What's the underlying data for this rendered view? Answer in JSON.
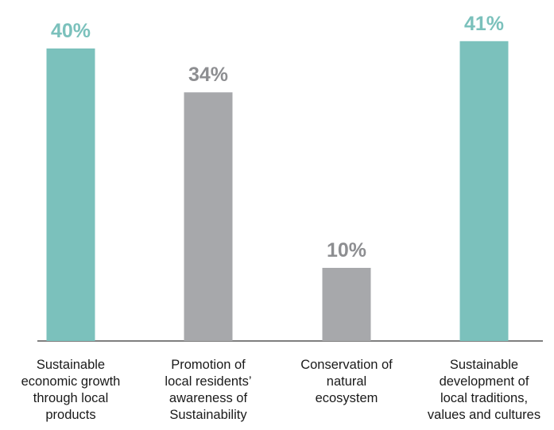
{
  "chart_data": {
    "type": "bar",
    "categories": [
      "Sustainable economic growth through local products",
      "Promotion of local residents’ awareness of Sustainability",
      "Conservation of natural ecosystem",
      "Sustainable development of local traditions, values and cultures"
    ],
    "category_lines": [
      [
        "Sustainable",
        "economic growth",
        "through local",
        "products"
      ],
      [
        "Promotion of",
        "local residents’",
        "awareness of",
        "Sustainability"
      ],
      [
        "Conservation of",
        "natural",
        "ecosystem"
      ],
      [
        "Sustainable",
        "development of",
        "local traditions,",
        "values and cultures"
      ]
    ],
    "values": [
      40,
      34,
      10,
      41
    ],
    "value_labels": [
      "40%",
      "34%",
      "10%",
      "41%"
    ],
    "bar_colors": [
      "#7bc1bc",
      "#a7a8ab",
      "#a7a8ab",
      "#7bc1bc"
    ],
    "label_colors": [
      "#7bc1bc",
      "#8d8e91",
      "#8d8e91",
      "#7bc1bc"
    ],
    "axis_color": "#555555",
    "title": "",
    "xlabel": "",
    "ylabel": "",
    "grid": false,
    "legend": "none"
  }
}
